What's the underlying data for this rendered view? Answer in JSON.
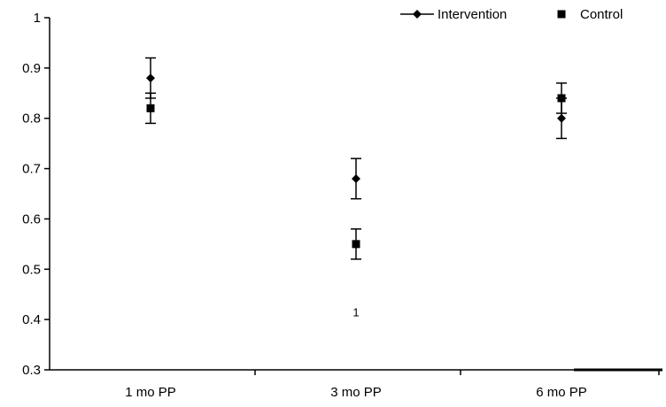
{
  "chart_data": {
    "type": "scatter",
    "categories": [
      "1 mo PP",
      "3 mo PP",
      "6 mo PP"
    ],
    "ylim": [
      0.3,
      1
    ],
    "yticks": [
      0.3,
      0.4,
      0.5,
      0.6,
      0.7,
      0.8,
      0.9,
      1
    ],
    "ytick_labels": [
      "0.3",
      "0.4",
      "0.5",
      "0.6",
      "0.7",
      "0.8",
      "0.9",
      "1"
    ],
    "grid": false,
    "legend_position": "top-right",
    "series": [
      {
        "name": "Intervention",
        "marker": "diamond",
        "color": "#000000",
        "values": [
          0.88,
          0.68,
          0.8
        ],
        "error_low": [
          0.84,
          0.64,
          0.76
        ],
        "error_high": [
          0.92,
          0.72,
          0.84
        ]
      },
      {
        "name": "Control",
        "marker": "square",
        "color": "#000000",
        "values": [
          0.82,
          0.55,
          0.84
        ],
        "error_low": [
          0.79,
          0.52,
          0.81
        ],
        "error_high": [
          0.85,
          0.58,
          0.87
        ]
      }
    ],
    "annotations": [
      {
        "text": "1",
        "category": "3 mo PP",
        "y": 0.415
      }
    ]
  }
}
